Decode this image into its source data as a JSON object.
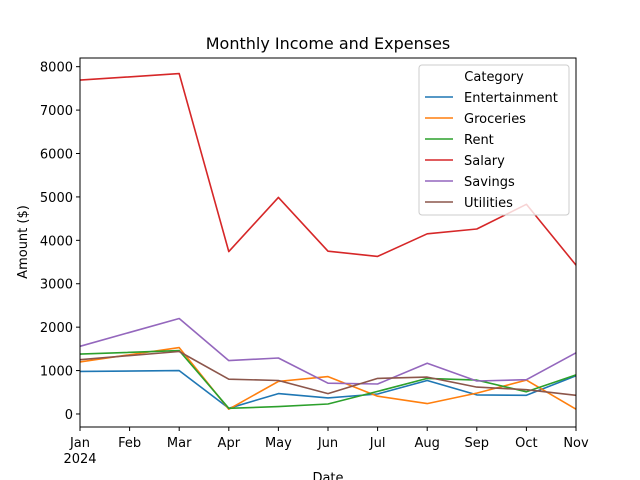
{
  "chart_data": {
    "type": "line",
    "title": "Monthly Income and Expenses",
    "xlabel": "Date",
    "ylabel": "Amount ($)",
    "x": [
      "2024-01",
      "2024-02",
      "2024-03",
      "2024-04",
      "2024-05",
      "2024-06",
      "2024-07",
      "2024-08",
      "2024-09",
      "2024-10",
      "2024-11"
    ],
    "x_tick_labels": [
      "Jan",
      "Feb",
      "Mar",
      "Apr",
      "May",
      "Jun",
      "Jul",
      "Aug",
      "Sep",
      "Oct",
      "Nov"
    ],
    "x_year_label": "2024",
    "y_ticks": [
      0,
      1000,
      2000,
      3000,
      4000,
      5000,
      6000,
      7000,
      8000
    ],
    "ylim": [
      -300,
      8200
    ],
    "grid": false,
    "legend_title": "Category",
    "legend_position": "top-right",
    "series": [
      {
        "name": "Entertainment",
        "color": "#1f77b4",
        "values": [
          980,
          null,
          1000,
          130,
          470,
          370,
          460,
          770,
          440,
          430,
          880
        ]
      },
      {
        "name": "Groceries",
        "color": "#ff7f0e",
        "values": [
          1200,
          null,
          1530,
          110,
          750,
          860,
          410,
          240,
          480,
          780,
          110
        ]
      },
      {
        "name": "Rent",
        "color": "#2ca02c",
        "values": [
          1380,
          null,
          1460,
          130,
          170,
          230,
          520,
          820,
          780,
          510,
          900
        ]
      },
      {
        "name": "Salary",
        "color": "#d62728",
        "values": [
          7690,
          null,
          7840,
          3740,
          4990,
          3750,
          3630,
          4150,
          4260,
          4830,
          3430
        ]
      },
      {
        "name": "Savings",
        "color": "#9467bd",
        "values": [
          1560,
          null,
          2200,
          1230,
          1290,
          710,
          690,
          1170,
          760,
          790,
          1410
        ]
      },
      {
        "name": "Utilities",
        "color": "#8c564b",
        "values": [
          1250,
          null,
          1440,
          800,
          770,
          470,
          820,
          850,
          620,
          560,
          430
        ]
      }
    ]
  }
}
